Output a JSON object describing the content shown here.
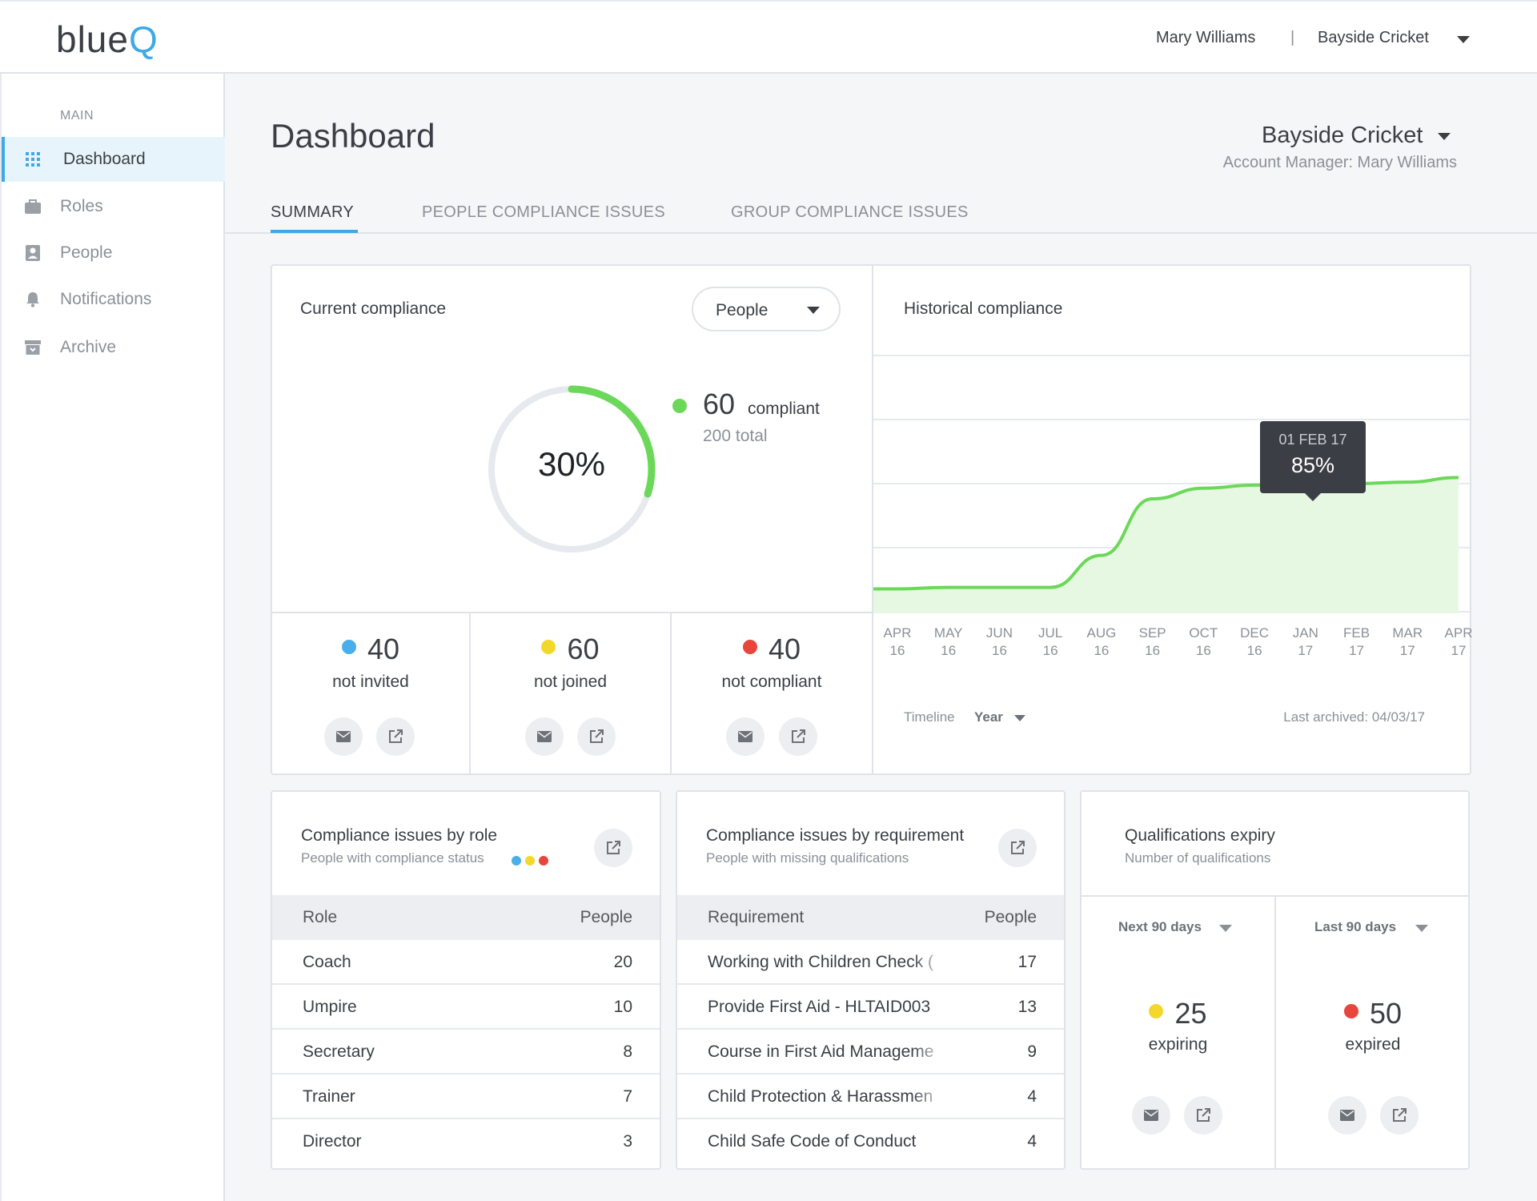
{
  "app": {
    "logo_main": "blue",
    "logo_q": "Q",
    "user": "Mary Williams",
    "separator": "|",
    "org": "Bayside Cricket"
  },
  "sidebar": {
    "section": "MAIN",
    "items": [
      {
        "label": "Dashboard",
        "icon": "grid-icon"
      },
      {
        "label": "Roles",
        "icon": "briefcase-icon"
      },
      {
        "label": "People",
        "icon": "person-card-icon"
      },
      {
        "label": "Notifications",
        "icon": "bell-icon"
      },
      {
        "label": "Archive",
        "icon": "archive-icon"
      }
    ]
  },
  "header": {
    "title": "Dashboard",
    "org": "Bayside Cricket",
    "account_manager": "Account Manager: Mary Williams"
  },
  "tabs": [
    "SUMMARY",
    "PEOPLE COMPLIANCE ISSUES",
    "GROUP COMPLIANCE ISSUES"
  ],
  "current": {
    "title": "Current compliance",
    "filter": "People",
    "percent_label": "30%",
    "percent": 0.3,
    "compliant_count": "60",
    "compliant_label": "compliant",
    "total": "200 total",
    "stats": [
      {
        "value": "40",
        "label": "not invited",
        "color": "#4aaee8"
      },
      {
        "value": "60",
        "label": "not joined",
        "color": "#f2d72c"
      },
      {
        "value": "40",
        "label": "not compliant",
        "color": "#e8453c"
      }
    ]
  },
  "historical": {
    "title": "Historical compliance",
    "tooltip_date": "01 FEB 17",
    "tooltip_value": "85%",
    "timeline_label": "Timeline",
    "timeline_value": "Year",
    "last_archived": "Last archived: 04/03/17"
  },
  "chart_data": {
    "type": "area",
    "categories": [
      "APR 16",
      "MAY 16",
      "JUN 16",
      "JUL 16",
      "AUG 16",
      "SEP 16",
      "OCT 16",
      "DEC 16",
      "JAN 17",
      "FEB 17",
      "MAR 17",
      "APR 17"
    ],
    "tick_labels": [
      [
        "APR",
        "16"
      ],
      [
        "MAY",
        "16"
      ],
      [
        "JUN",
        "16"
      ],
      [
        "JUL",
        "16"
      ],
      [
        "AUG",
        "16"
      ],
      [
        "SEP",
        "16"
      ],
      [
        "OCT",
        "16"
      ],
      [
        "DEC",
        "16"
      ],
      [
        "JAN",
        "17"
      ],
      [
        "FEB",
        "17"
      ],
      [
        "MAR",
        "17"
      ],
      [
        "APR",
        "17"
      ]
    ],
    "values": [
      16,
      17,
      17,
      17,
      38,
      75,
      82,
      84,
      85,
      85,
      86,
      89
    ],
    "ylim": [
      0,
      170
    ],
    "highlight": {
      "category": "FEB 17",
      "value": 85
    },
    "line_color": "#6cd85a",
    "fill_color": "#e6f7e2",
    "grid": true
  },
  "role_card": {
    "title": "Compliance issues by role",
    "subtitle": "People with compliance status",
    "col1": "Role",
    "col2": "People",
    "rows": [
      {
        "name": "Coach",
        "count": "20"
      },
      {
        "name": "Umpire",
        "count": "10"
      },
      {
        "name": "Secretary",
        "count": "8"
      },
      {
        "name": "Trainer",
        "count": "7"
      },
      {
        "name": "Director",
        "count": "3"
      }
    ]
  },
  "req_card": {
    "title": "Compliance issues by requirement",
    "subtitle": "People with missing qualifications",
    "col1": "Requirement",
    "col2": "People",
    "rows": [
      {
        "name": "Working with Children Check (",
        "count": "17"
      },
      {
        "name": "Provide First Aid - HLTAID003",
        "count": "13"
      },
      {
        "name": "Course in First Aid Manageme",
        "count": "9"
      },
      {
        "name": "Child Protection & Harassmen",
        "count": "4"
      },
      {
        "name": "Child Safe Code of Conduct",
        "count": "4"
      }
    ]
  },
  "qual_card": {
    "title": "Qualifications expiry",
    "subtitle": "Number of qualifications",
    "left": {
      "period": "Next 90 days",
      "value": "25",
      "label": "expiring",
      "color": "#f2d72c"
    },
    "right": {
      "period": "Last 90 days",
      "value": "50",
      "label": "expired",
      "color": "#e8453c"
    }
  },
  "colors": {
    "accent": "#3fa9e6",
    "green": "#6cd85a",
    "blue": "#4aaee8",
    "yellow": "#f2d72c",
    "red": "#e8453c"
  }
}
